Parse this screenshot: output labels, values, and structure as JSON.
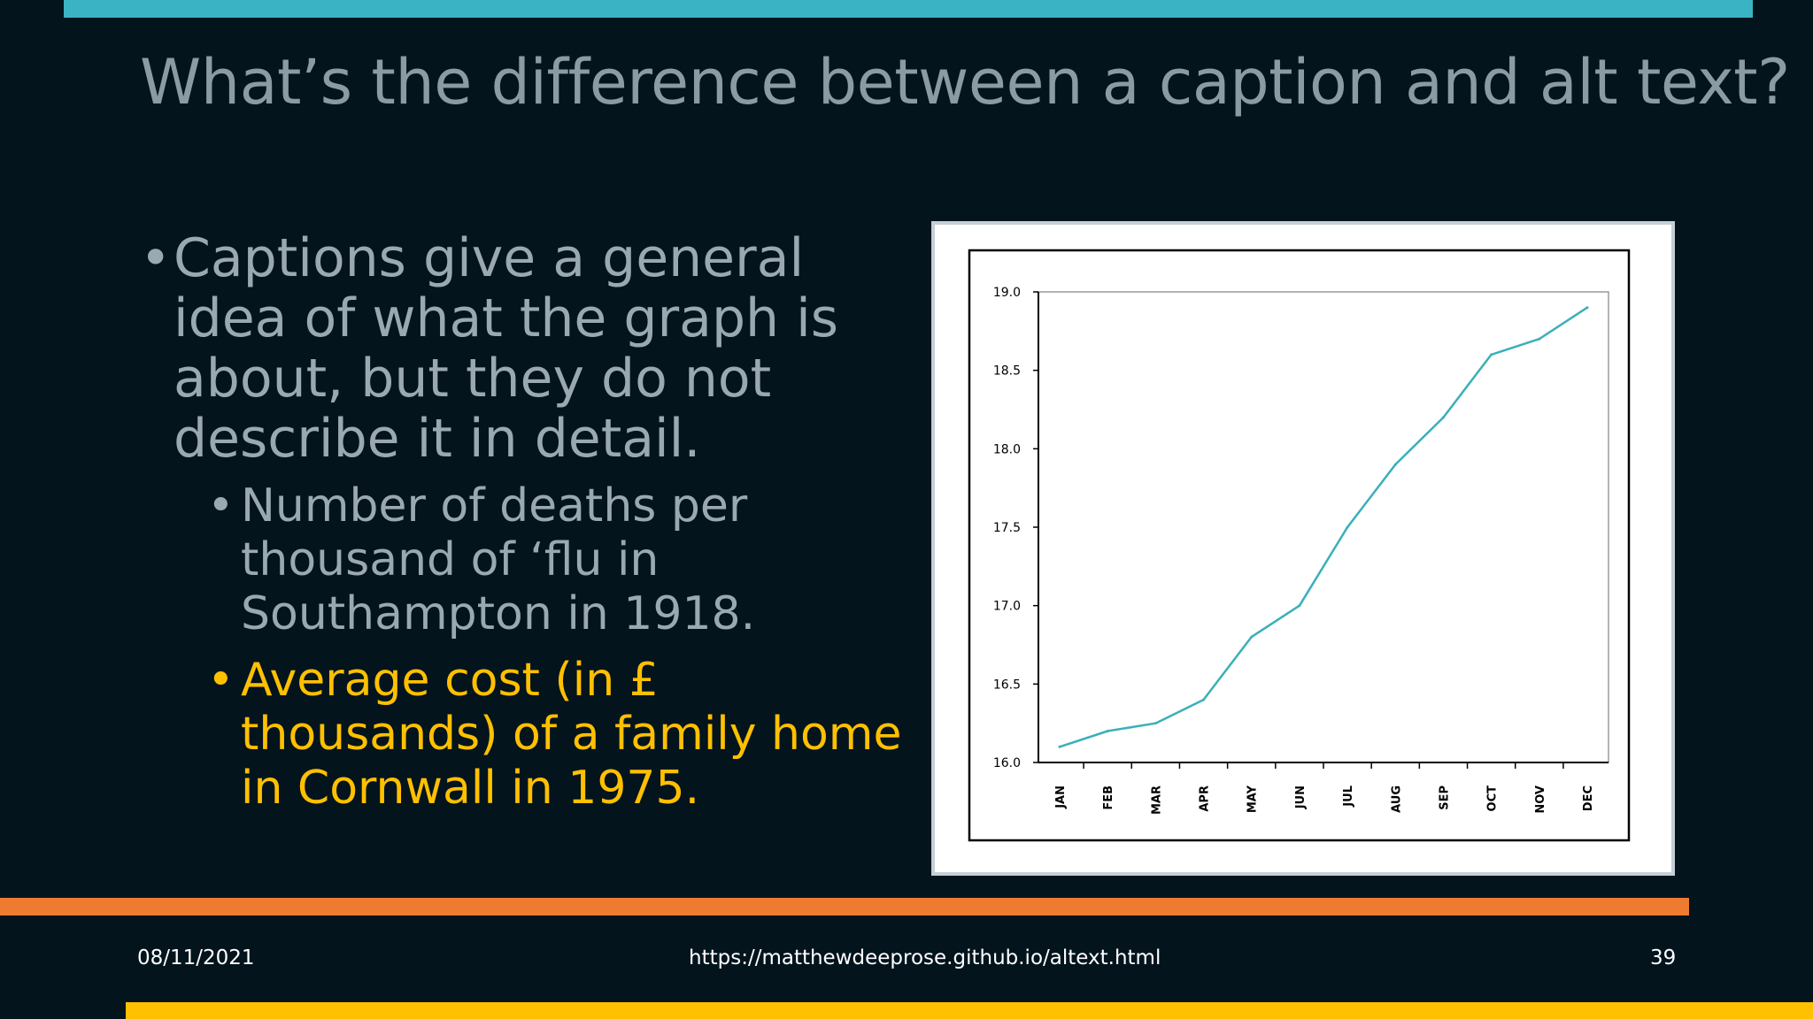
{
  "slide": {
    "title": "What’s the difference between a caption and alt text?",
    "bullets": [
      {
        "level": 1,
        "text": "Captions give a general idea of what the graph is about, but they do not describe it in detail.",
        "color": "#9aa9b1"
      },
      {
        "level": 2,
        "text": "Number of deaths per thousand of ‘flu in Southampton in 1918.",
        "color": "#9aa9b1"
      },
      {
        "level": 2,
        "text": "Average cost (in £ thousands) of a family home in Cornwall in 1975.",
        "color": "#ffc000"
      }
    ],
    "bullet_glyph": "•"
  },
  "footer": {
    "date": "08/11/2021",
    "url": "https://matthewdeeprose.github.io/altext.html",
    "page_number": "39"
  },
  "colors": {
    "background": "#03141d",
    "top_bar": "#3ab4c4",
    "orange_bar": "#ee7b30",
    "yellow_bar": "#ffc000",
    "line": "#3ab0b8"
  },
  "chart_data": {
    "type": "line",
    "categories": [
      "JAN",
      "FEB",
      "MAR",
      "APR",
      "MAY",
      "JUN",
      "JUL",
      "AUG",
      "SEP",
      "OCT",
      "NOV",
      "DEC"
    ],
    "values": [
      16.1,
      16.2,
      16.25,
      16.4,
      16.8,
      17.0,
      17.5,
      17.9,
      18.2,
      18.6,
      18.7,
      18.9
    ],
    "yticks": [
      "16.0",
      "16.5",
      "17.0",
      "17.5",
      "18.0",
      "18.5",
      "19.0"
    ],
    "ylim": [
      16.0,
      19.0
    ],
    "title": "",
    "xlabel": "",
    "ylabel": "",
    "grid": false,
    "legend": "none"
  }
}
